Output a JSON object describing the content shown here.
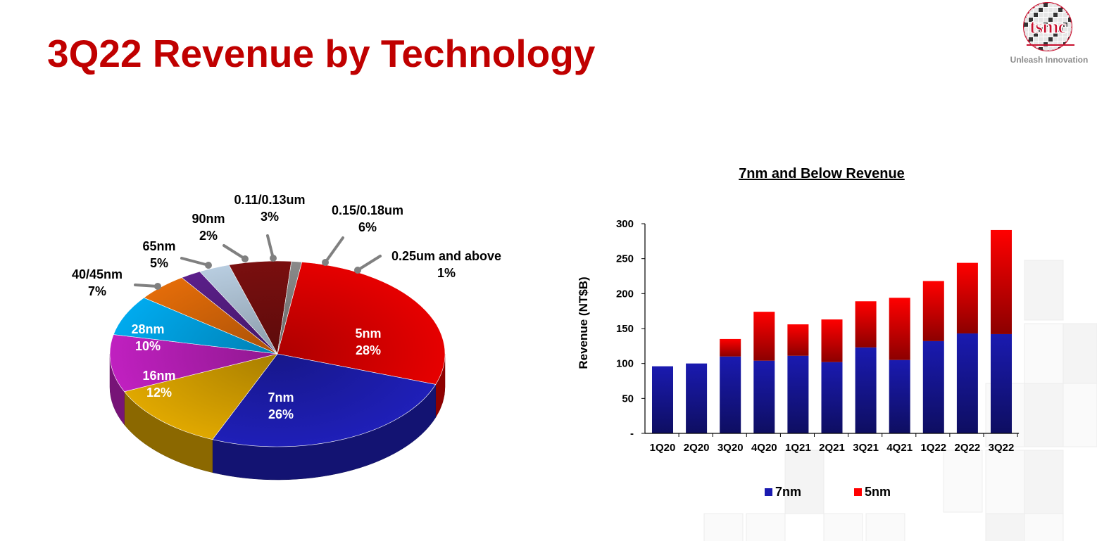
{
  "page": {
    "title": "3Q22 Revenue by Technology",
    "logo_text": "tsmc",
    "tagline": "Unleash Innovation",
    "colors": {
      "title": "#c00000",
      "logo": "#c8102e",
      "tagline": "#8c8c8c"
    }
  },
  "chart_data": [
    {
      "type": "pie",
      "title": "",
      "slices": [
        {
          "label": "5nm",
          "value": 28,
          "display": "28%",
          "color": "#e60000"
        },
        {
          "label": "7nm",
          "value": 26,
          "display": "26%",
          "color": "#1f1fb8"
        },
        {
          "label": "16nm",
          "value": 12,
          "display": "12%",
          "color": "#e0a800"
        },
        {
          "label": "28nm",
          "value": 10,
          "display": "10%",
          "color": "#c020c0"
        },
        {
          "label": "40/45nm",
          "value": 7,
          "display": "7%",
          "color": "#00aaee"
        },
        {
          "label": "65nm",
          "value": 5,
          "display": "5%",
          "color": "#e36c09"
        },
        {
          "label": "90nm",
          "value": 2,
          "display": "2%",
          "color": "#5b1f8a"
        },
        {
          "label": "0.11/0.13um",
          "value": 3,
          "display": "3%",
          "color": "#b8cde0"
        },
        {
          "label": "0.15/0.18um",
          "value": 6,
          "display": "6%",
          "color": "#7a0f0f"
        },
        {
          "label": "0.25um and above",
          "value": 1,
          "display": "1%",
          "color": "#8a8a8a"
        }
      ]
    },
    {
      "type": "bar",
      "stacked": true,
      "title": "7nm and Below Revenue",
      "ylabel": "Revenue (NT$B)",
      "xlabel": "",
      "categories": [
        "1Q20",
        "2Q20",
        "3Q20",
        "4Q20",
        "1Q21",
        "2Q21",
        "3Q21",
        "4Q21",
        "1Q22",
        "2Q22",
        "3Q22"
      ],
      "series": [
        {
          "name": "7nm",
          "color": "#1a1ab0",
          "values": [
            96,
            100,
            110,
            104,
            111,
            102,
            123,
            105,
            132,
            143,
            142
          ]
        },
        {
          "name": "5nm",
          "color": "#ff0000",
          "values": [
            0,
            0,
            25,
            70,
            45,
            61,
            66,
            89,
            86,
            101,
            149
          ]
        }
      ],
      "ylim": [
        0,
        300
      ],
      "yticks": [
        {
          "value": 0,
          "label": "-"
        },
        {
          "value": 50,
          "label": "50"
        },
        {
          "value": 100,
          "label": "100"
        },
        {
          "value": 150,
          "label": "150"
        },
        {
          "value": 200,
          "label": "200"
        },
        {
          "value": 250,
          "label": "250"
        },
        {
          "value": 300,
          "label": "300"
        }
      ],
      "legend_position": "bottom",
      "grid": false
    }
  ]
}
